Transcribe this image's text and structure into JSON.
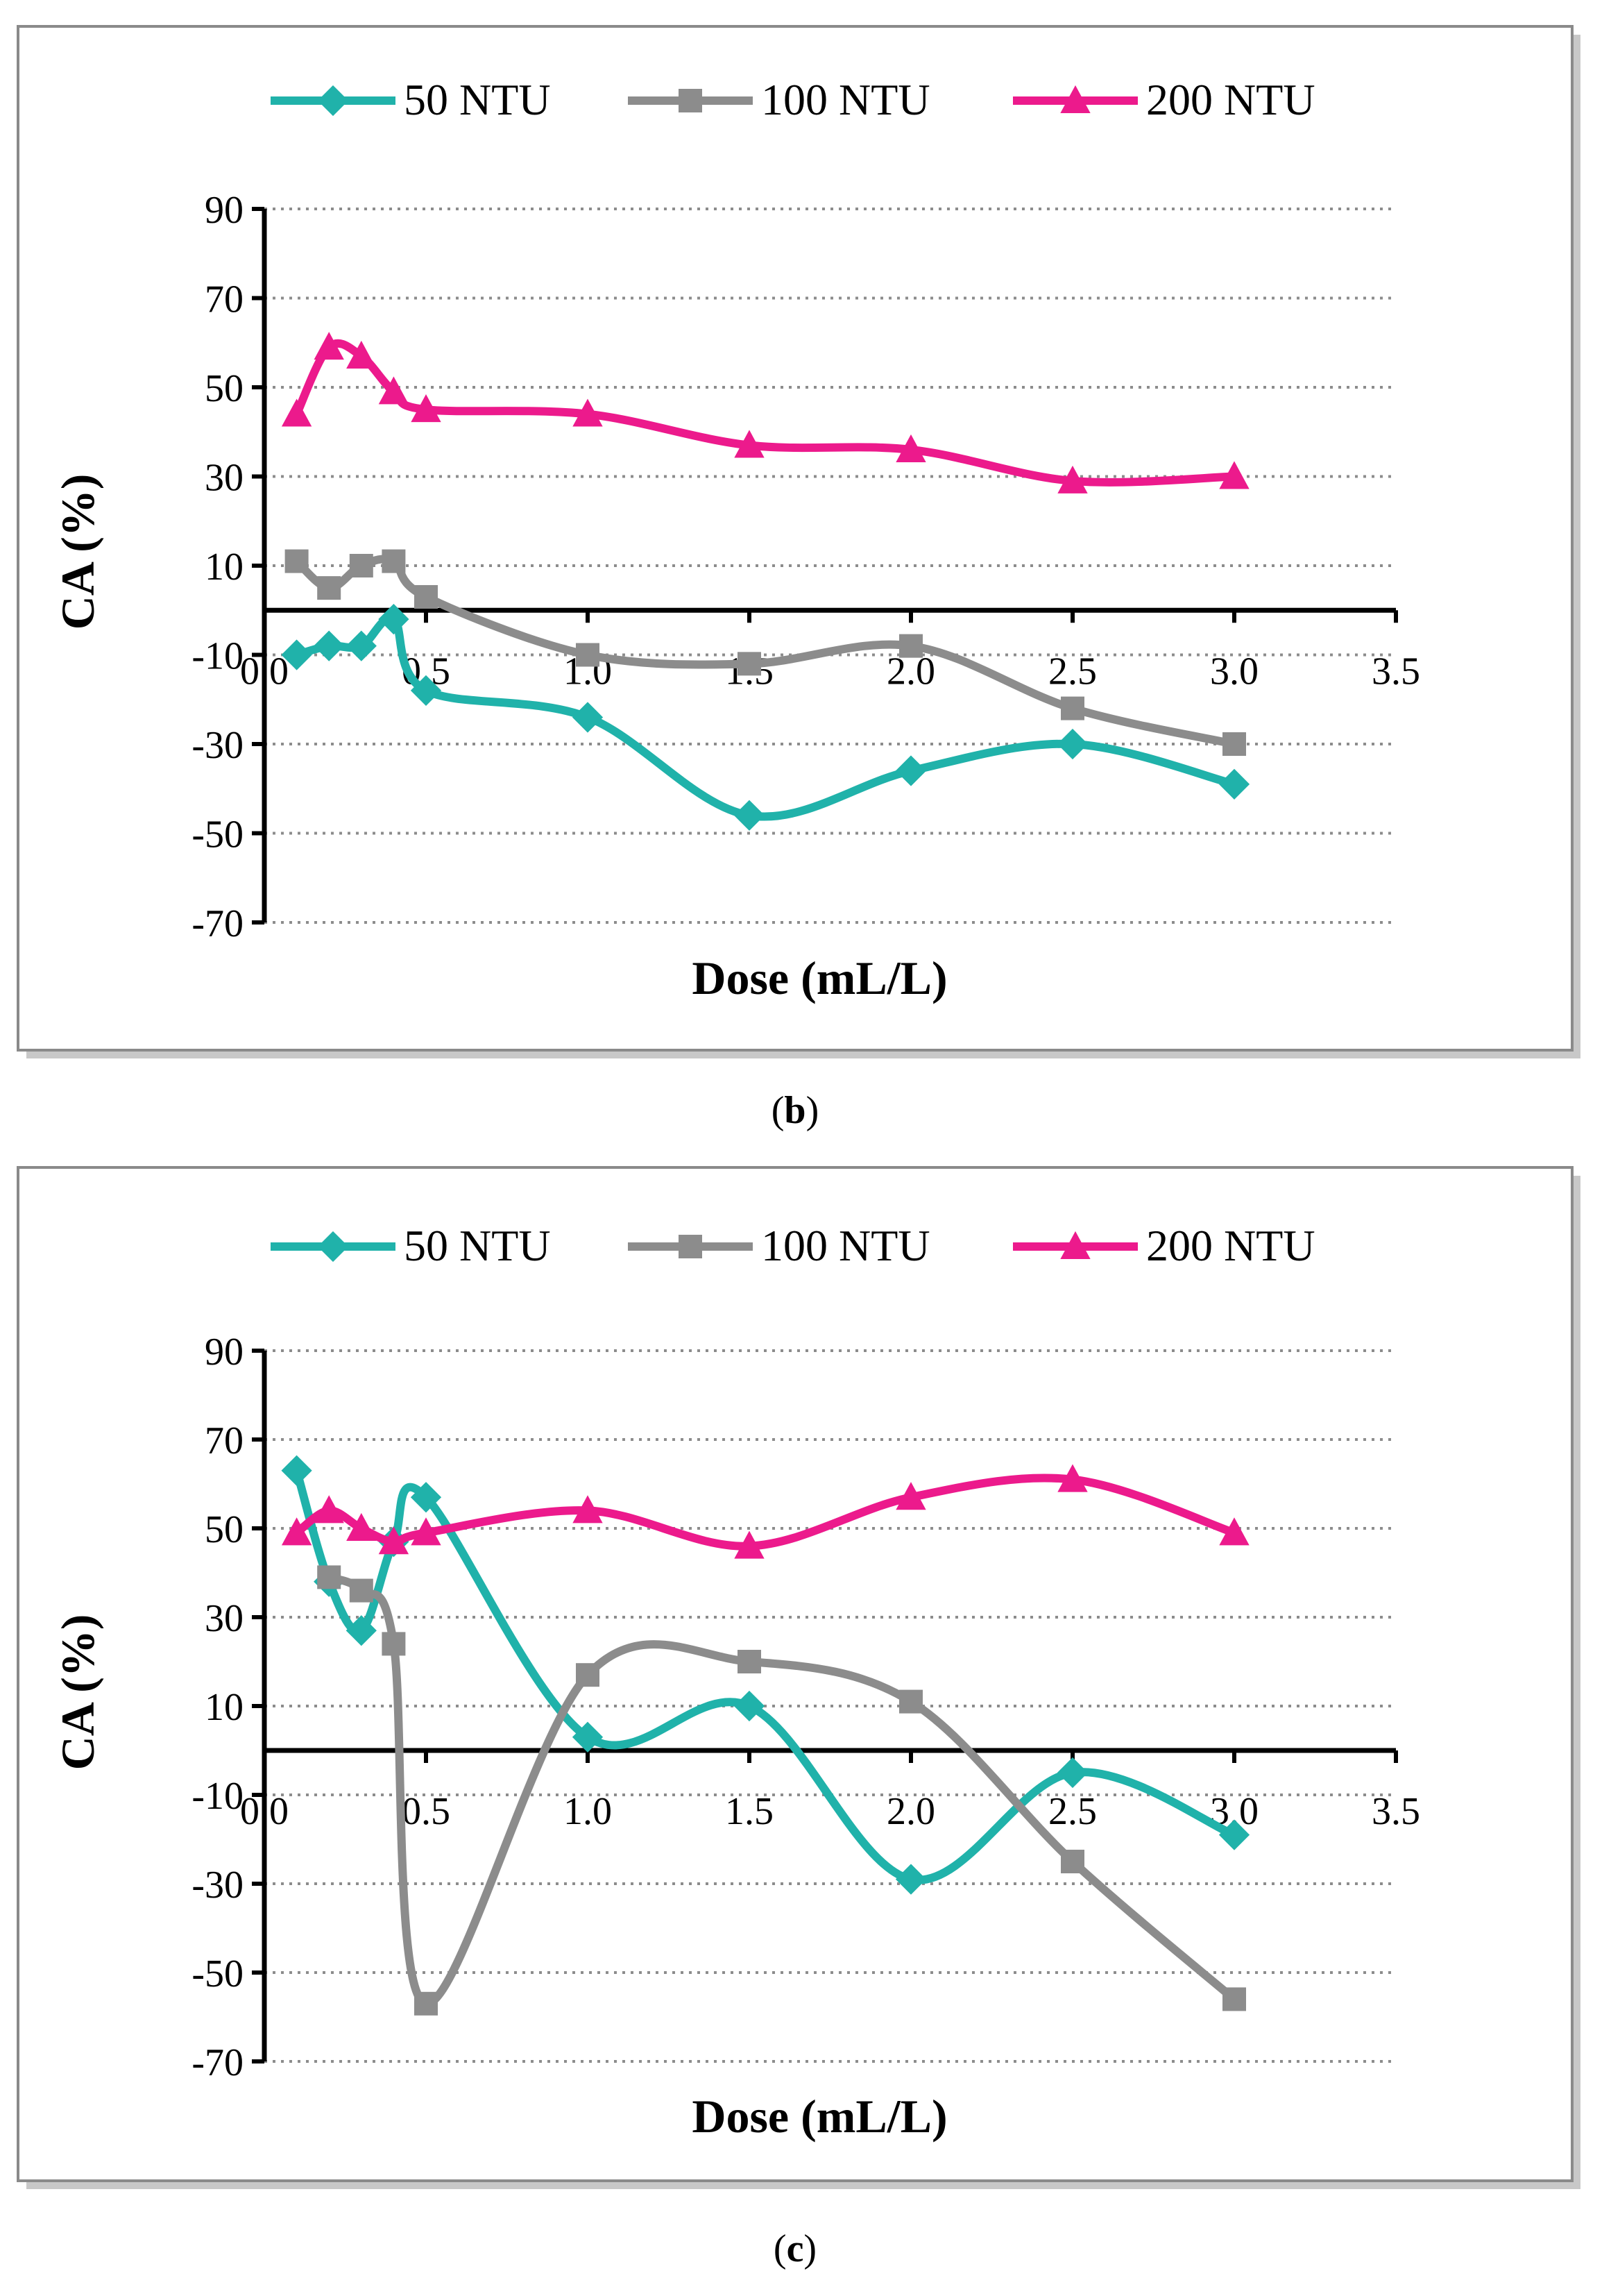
{
  "chart_data": [
    {
      "type": "line",
      "caption": {
        "open": "(",
        "letter": "b",
        "close": ")"
      },
      "xlabel": "Dose (mL/L)",
      "ylabel": "CA (%)",
      "xlim": [
        0.0,
        3.5
      ],
      "ylim": [
        -70,
        90
      ],
      "xticks": [
        "0.0",
        "0.5",
        "1.0",
        "1.5",
        "2.0",
        "2.5",
        "3.0",
        "3.5"
      ],
      "yticks": [
        "90",
        "70",
        "50",
        "30",
        "10",
        "-10",
        "-30",
        "-50",
        "-70"
      ],
      "grid": "horizontal dotted",
      "legend_position": "top",
      "x": [
        0.1,
        0.2,
        0.3,
        0.4,
        0.5,
        1.0,
        1.5,
        2.0,
        2.5,
        3.0
      ],
      "series": [
        {
          "name": "50 NTU",
          "color": "#20B2AA",
          "marker": "diamond",
          "values": [
            -10,
            -8,
            -8,
            -2,
            -18,
            -24,
            -46,
            -36,
            -30,
            -39
          ]
        },
        {
          "name": "100 NTU",
          "color": "#8C8C8C",
          "marker": "square",
          "values": [
            11,
            5,
            10,
            11,
            3,
            -10,
            -12,
            -8,
            -22,
            -30
          ]
        },
        {
          "name": "200 NTU",
          "color": "#EC1A8C",
          "marker": "triangle",
          "values": [
            44,
            59,
            57,
            49,
            45,
            44,
            37,
            36,
            29,
            30
          ]
        }
      ]
    },
    {
      "type": "line",
      "caption": {
        "open": "(",
        "letter": "c",
        "close": ")"
      },
      "xlabel": "Dose (mL/L)",
      "ylabel": "CA (%)",
      "xlim": [
        0.0,
        3.5
      ],
      "ylim": [
        -70,
        90
      ],
      "xticks": [
        "0.0",
        "0.5",
        "1.0",
        "1.5",
        "2.0",
        "2.5",
        "3.0",
        "3.5"
      ],
      "yticks": [
        "90",
        "70",
        "50",
        "30",
        "10",
        "-10",
        "-30",
        "-50",
        "-70"
      ],
      "grid": "horizontal dotted",
      "legend_position": "top",
      "x": [
        0.1,
        0.2,
        0.3,
        0.4,
        0.5,
        1.0,
        1.5,
        2.0,
        2.5,
        3.0
      ],
      "series": [
        {
          "name": "50 NTU",
          "color": "#20B2AA",
          "marker": "diamond",
          "values": [
            63,
            38,
            27,
            47,
            57,
            3,
            10,
            -29,
            -5,
            -19
          ]
        },
        {
          "name": "100 NTU",
          "color": "#8C8C8C",
          "marker": "square",
          "values": [
            null,
            39,
            36,
            24,
            -57,
            17,
            20,
            11,
            -25,
            -56
          ]
        },
        {
          "name": "200 NTU",
          "color": "#EC1A8C",
          "marker": "triangle",
          "values": [
            49,
            54,
            50,
            47,
            49,
            54,
            46,
            57,
            61,
            49
          ]
        }
      ]
    }
  ]
}
